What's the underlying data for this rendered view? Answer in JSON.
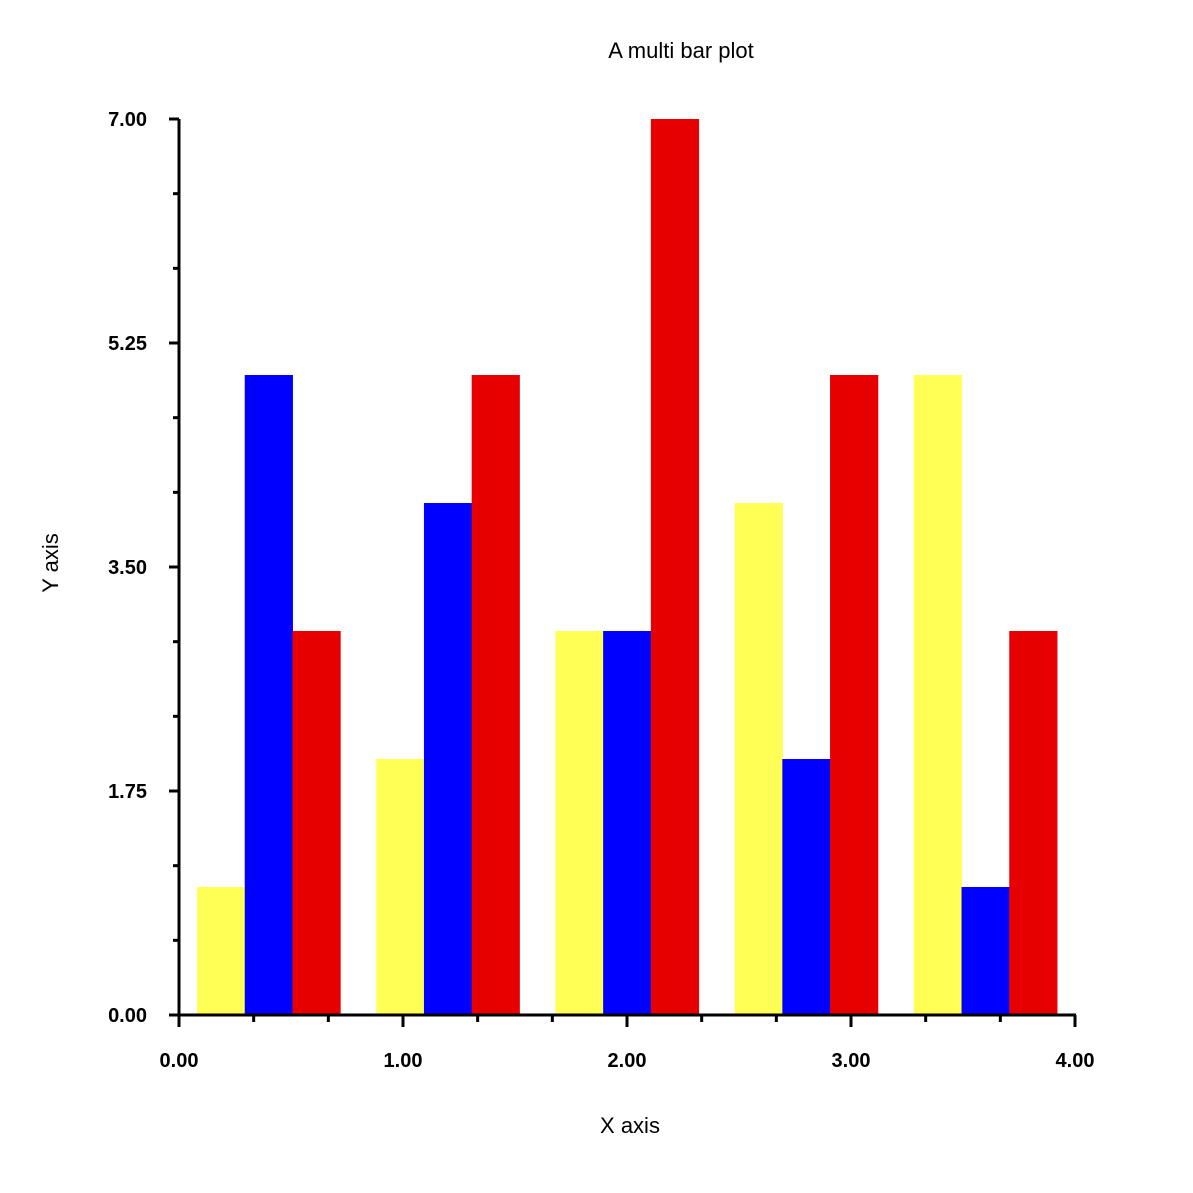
{
  "chart_data": {
    "type": "bar",
    "title": "A multi bar plot",
    "xlabel": "X axis",
    "ylabel": "Y axis",
    "xlim": [
      0,
      4
    ],
    "ylim": [
      0,
      7
    ],
    "xticks": [
      "0.00",
      "1.00",
      "2.00",
      "3.00",
      "4.00"
    ],
    "yticks": [
      "0.00",
      "1.75",
      "3.50",
      "5.25",
      "7.00"
    ],
    "grid": false,
    "group_positions": [
      0.4,
      1.2,
      2.0,
      2.8,
      3.6
    ],
    "bar_width": 0.213,
    "series": [
      {
        "color": "#ffff55",
        "values": [
          1,
          2,
          3,
          4,
          5
        ]
      },
      {
        "color": "#0000ff",
        "values": [
          5,
          4,
          3,
          2,
          1
        ]
      },
      {
        "color": "#e60000",
        "values": [
          3,
          5,
          7,
          5,
          3
        ]
      }
    ]
  }
}
